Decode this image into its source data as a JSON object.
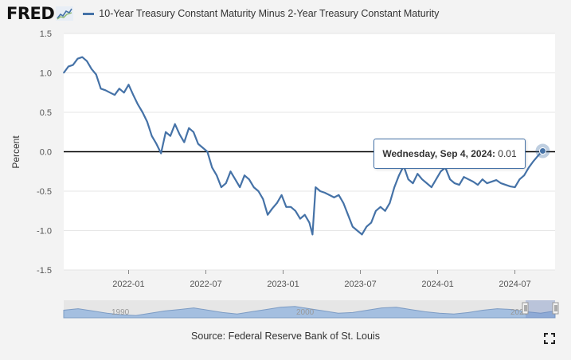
{
  "header": {
    "logo_text": "FRED",
    "series_label": "10-Year Treasury Constant Maturity Minus 2-Year Treasury Constant Maturity"
  },
  "tooltip": {
    "date": "Wednesday, Sep 4, 2024:",
    "value": "0.01"
  },
  "source": "Source: Federal Reserve Bank of St. Louis",
  "navigator": {
    "labels": [
      "1990",
      "2000",
      "2020"
    ]
  },
  "colors": {
    "series": "#4572a7",
    "zero_line": "#000000",
    "plot_bg": "#ffffff",
    "navigator_fill": "#9fb9d8"
  },
  "chart_data": {
    "type": "line",
    "title": "10-Year Treasury Constant Maturity Minus 2-Year Treasury Constant Maturity",
    "xlabel": "",
    "ylabel": "Percent",
    "ylim": [
      -1.5,
      1.5
    ],
    "y_ticks": [
      "1.5",
      "1.0",
      "0.5",
      "0.0",
      "-0.5",
      "-1.0",
      "-1.5"
    ],
    "y_tick_values": [
      1.5,
      1.0,
      0.5,
      0.0,
      -0.5,
      -1.0,
      -1.5
    ],
    "x_tick_labels": [
      "2022-01",
      "2022-07",
      "2023-01",
      "2023-07",
      "2024-01",
      "2024-07"
    ],
    "x_tick_values": [
      2022.0,
      2022.5,
      2023.0,
      2023.5,
      2024.0,
      2024.5
    ],
    "xlim": [
      2021.58,
      2024.76
    ],
    "grid": true,
    "series": [
      {
        "name": "10-Year Treasury Constant Maturity Minus 2-Year Treasury Constant Maturity",
        "x": [
          2021.58,
          2021.61,
          2021.64,
          2021.67,
          2021.7,
          2021.73,
          2021.76,
          2021.79,
          2021.82,
          2021.85,
          2021.88,
          2021.91,
          2021.94,
          2021.97,
          2022.0,
          2022.03,
          2022.06,
          2022.09,
          2022.12,
          2022.15,
          2022.18,
          2022.21,
          2022.24,
          2022.27,
          2022.3,
          2022.33,
          2022.36,
          2022.39,
          2022.42,
          2022.45,
          2022.48,
          2022.51,
          2022.54,
          2022.57,
          2022.6,
          2022.63,
          2022.66,
          2022.69,
          2022.72,
          2022.75,
          2022.78,
          2022.81,
          2022.84,
          2022.87,
          2022.9,
          2022.93,
          2022.96,
          2022.99,
          2023.02,
          2023.05,
          2023.08,
          2023.11,
          2023.14,
          2023.17,
          2023.19,
          2023.21,
          2023.24,
          2023.27,
          2023.3,
          2023.33,
          2023.36,
          2023.39,
          2023.42,
          2023.45,
          2023.48,
          2023.51,
          2023.54,
          2023.57,
          2023.6,
          2023.63,
          2023.66,
          2023.69,
          2023.72,
          2023.75,
          2023.78,
          2023.81,
          2023.84,
          2023.87,
          2023.9,
          2023.93,
          2023.96,
          2023.99,
          2024.02,
          2024.05,
          2024.08,
          2024.11,
          2024.14,
          2024.17,
          2024.2,
          2024.23,
          2024.26,
          2024.29,
          2024.32,
          2024.35,
          2024.38,
          2024.41,
          2024.44,
          2024.47,
          2024.5,
          2024.53,
          2024.56,
          2024.59,
          2024.62,
          2024.65,
          2024.68
        ],
        "values": [
          1.0,
          1.08,
          1.1,
          1.18,
          1.2,
          1.15,
          1.05,
          0.98,
          0.8,
          0.78,
          0.75,
          0.72,
          0.8,
          0.75,
          0.85,
          0.72,
          0.6,
          0.5,
          0.38,
          0.2,
          0.1,
          -0.02,
          0.25,
          0.2,
          0.35,
          0.22,
          0.12,
          0.3,
          0.25,
          0.1,
          0.05,
          0.0,
          -0.2,
          -0.3,
          -0.45,
          -0.4,
          -0.25,
          -0.35,
          -0.45,
          -0.3,
          -0.35,
          -0.45,
          -0.5,
          -0.6,
          -0.8,
          -0.72,
          -0.65,
          -0.55,
          -0.7,
          -0.7,
          -0.75,
          -0.85,
          -0.8,
          -0.9,
          -1.05,
          -0.45,
          -0.5,
          -0.52,
          -0.55,
          -0.58,
          -0.55,
          -0.65,
          -0.8,
          -0.95,
          -1.0,
          -1.05,
          -0.95,
          -0.9,
          -0.75,
          -0.7,
          -0.75,
          -0.65,
          -0.45,
          -0.3,
          -0.18,
          -0.35,
          -0.4,
          -0.28,
          -0.35,
          -0.4,
          -0.45,
          -0.35,
          -0.25,
          -0.2,
          -0.35,
          -0.4,
          -0.42,
          -0.32,
          -0.35,
          -0.38,
          -0.42,
          -0.35,
          -0.4,
          -0.38,
          -0.36,
          -0.4,
          -0.42,
          -0.44,
          -0.45,
          -0.35,
          -0.3,
          -0.2,
          -0.12,
          -0.05,
          0.01
        ]
      }
    ],
    "annotations": [
      {
        "text": "Wednesday, Sep 4, 2024: 0.01",
        "x": 2024.68,
        "y": 0.01
      }
    ]
  }
}
